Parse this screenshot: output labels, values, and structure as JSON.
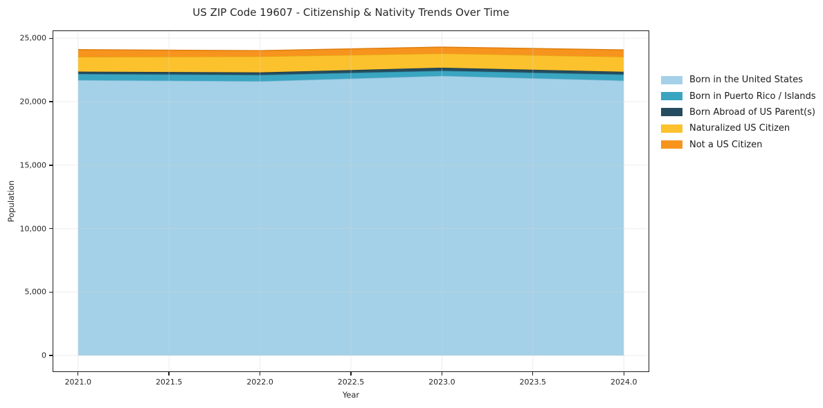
{
  "chart_data": {
    "type": "area",
    "stacked": true,
    "title": "US ZIP Code 19607 - Citizenship & Nativity Trends Over Time",
    "xlabel": "Year",
    "ylabel": "Population",
    "x": [
      2021,
      2022,
      2023,
      2024
    ],
    "series": [
      {
        "name": "Born in the United States",
        "color": "#a4d1e8",
        "edge": "#86bcd9",
        "values": [
          21700,
          21610,
          22030,
          21660
        ]
      },
      {
        "name": "Born in Puerto Rico / Islands",
        "color": "#3aa5c1",
        "edge": "#2f8aa3",
        "values": [
          490,
          500,
          410,
          480
        ]
      },
      {
        "name": "Born Abroad of US Parent(s)",
        "color": "#254c5e",
        "edge": "#1c3b4a",
        "values": [
          180,
          200,
          240,
          220
        ]
      },
      {
        "name": "Naturalized US Citizen",
        "color": "#fcc22d",
        "edge": "#e3aa15",
        "values": [
          1150,
          1250,
          1120,
          1170
        ]
      },
      {
        "name": "Not a US Citizen",
        "color": "#f7941e",
        "edge": "#dd7e10",
        "values": [
          580,
          460,
          500,
          550
        ]
      }
    ],
    "xlim": [
      2020.86,
      2024.14
    ],
    "ylim": [
      -1300,
      25615
    ],
    "xticks": {
      "values": [
        2021.0,
        2021.5,
        2022.0,
        2022.5,
        2023.0,
        2023.5,
        2024.0
      ],
      "labels": [
        "2021.0",
        "2021.5",
        "2022.0",
        "2022.5",
        "2023.0",
        "2023.5",
        "2024.0"
      ]
    },
    "yticks": {
      "values": [
        0,
        5000,
        10000,
        15000,
        20000,
        25000
      ],
      "labels": [
        "0",
        "5,000",
        "10,000",
        "15,000",
        "20,000",
        "25,000"
      ]
    },
    "grid": true,
    "grid_color": "#d4d4d4",
    "legend_position": "right",
    "spine_color": "#1a1a1a"
  }
}
